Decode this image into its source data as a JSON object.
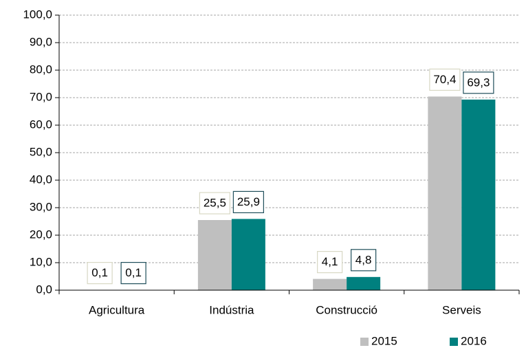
{
  "chart_data": {
    "type": "bar",
    "categories": [
      "Agricultura",
      "Indústria",
      "Construcció",
      "Serveis"
    ],
    "series": [
      {
        "name": "2015",
        "color": "#bfbfbf",
        "label_border": "#d8d8c4",
        "values": [
          0.1,
          25.5,
          4.1,
          70.4
        ],
        "value_labels": [
          "0,1",
          "25,5",
          "4,1",
          "70,4"
        ]
      },
      {
        "name": "2016",
        "color": "#00807f",
        "label_border": "#1f4e5a",
        "values": [
          0.1,
          25.9,
          4.8,
          69.3
        ],
        "value_labels": [
          "0,1",
          "25,9",
          "4,8",
          "69,3"
        ]
      }
    ],
    "ylim": [
      0,
      100
    ],
    "yticks": [
      {
        "value": 0,
        "label": "0,0"
      },
      {
        "value": 10,
        "label": "10,0"
      },
      {
        "value": 20,
        "label": "20,0"
      },
      {
        "value": 30,
        "label": "30,0"
      },
      {
        "value": 40,
        "label": "40,0"
      },
      {
        "value": 50,
        "label": "50,0"
      },
      {
        "value": 60,
        "label": "60,0"
      },
      {
        "value": 70,
        "label": "70,0"
      },
      {
        "value": 80,
        "label": "80,0"
      },
      {
        "value": 90,
        "label": "90,0"
      },
      {
        "value": 100,
        "label": "100,0"
      }
    ],
    "grid": true,
    "legend": "bottom-right"
  }
}
